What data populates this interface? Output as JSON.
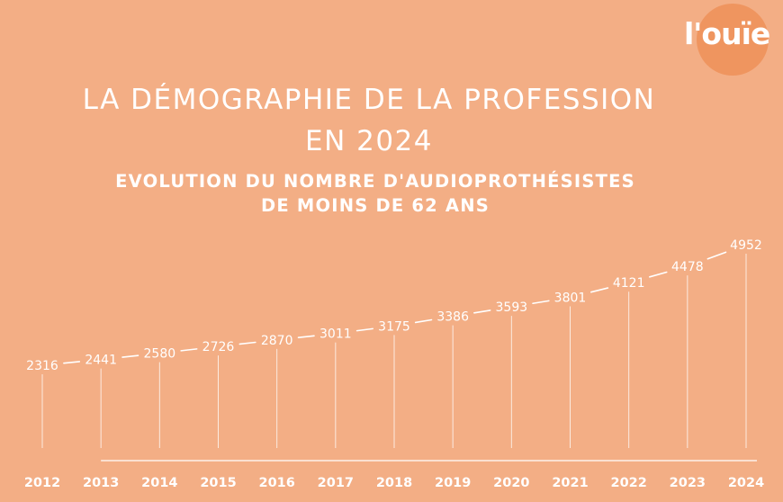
{
  "title_line1": "LA DÉMOGRAPHIE DE LA PROFESSION",
  "title_line2": "EN 2024",
  "subtitle_line1": "EVOLUTION DU NOMBRE D'AUDIOPROTHÉSISTES",
  "subtitle_line2": "DE MOINS DE 62 ANS",
  "logo_text": "l'ouïe",
  "colors": {
    "background": "#F3AE85",
    "foreground": "#FFFFFF",
    "logo_accent": "#EF955F"
  },
  "chart_data": {
    "type": "line",
    "title": "LA DÉMOGRAPHIE DE LA PROFESSION EN 2024",
    "subtitle": "EVOLUTION DU NOMBRE D'AUDIOPROTHÉSISTES DE MOINS DE 62 ANS",
    "categories": [
      "2012",
      "2013",
      "2014",
      "2015",
      "2016",
      "2017",
      "2018",
      "2019",
      "2020",
      "2021",
      "2022",
      "2023",
      "2024"
    ],
    "values": [
      2316,
      2441,
      2580,
      2726,
      2870,
      3011,
      3175,
      3386,
      3593,
      3801,
      4121,
      4478,
      4952
    ],
    "xlabel": "",
    "ylabel": "",
    "grid": false,
    "legend": "none"
  }
}
